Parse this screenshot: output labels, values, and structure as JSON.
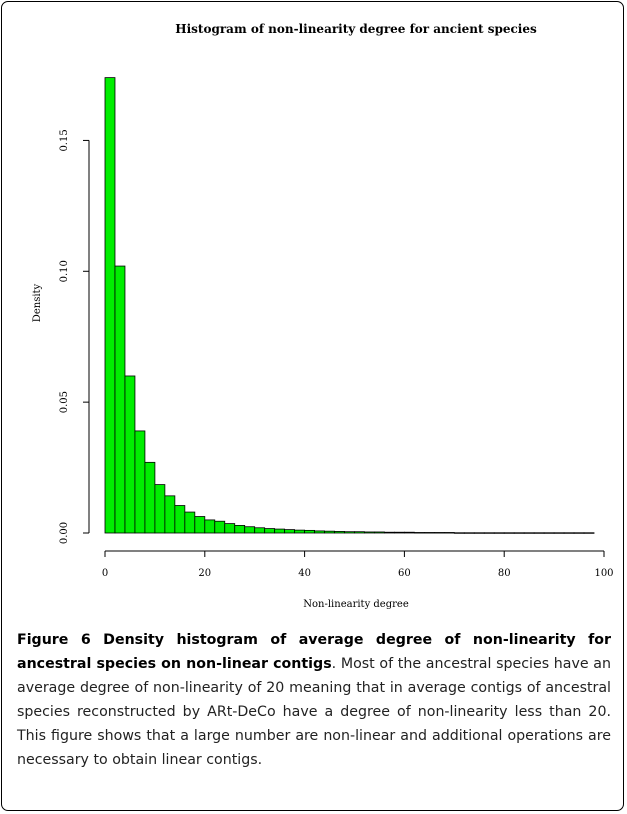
{
  "chart_data": {
    "type": "bar",
    "title": "Histogram of non-linearity degree for ancient species",
    "xlabel": "Non-linearity degree",
    "ylabel": "Density",
    "xlim": [
      0,
      100
    ],
    "ylim": [
      0,
      0.175
    ],
    "bin_width": 2,
    "bin_start": 0,
    "values": [
      0.174,
      0.102,
      0.06,
      0.039,
      0.027,
      0.0185,
      0.0142,
      0.0105,
      0.008,
      0.0063,
      0.005,
      0.0045,
      0.0036,
      0.0029,
      0.0024,
      0.002,
      0.0017,
      0.0015,
      0.0013,
      0.0011,
      0.001,
      0.0008,
      0.0007,
      0.0006,
      0.0005,
      0.0005,
      0.0004,
      0.0004,
      0.0003,
      0.0003,
      0.0003,
      0.0002,
      0.0002,
      0.0002,
      0.0002,
      0.0001,
      0.0001,
      0.0001,
      0.0001,
      0.0001,
      0.0001,
      0.0001,
      0.0001,
      0.0001,
      0.0001,
      0.0001,
      0.0001,
      0.0001,
      0.0001
    ],
    "x_ticks": [
      0,
      20,
      40,
      60,
      80,
      100
    ],
    "x_tick_labels": [
      "0",
      "20",
      "40",
      "60",
      "80",
      "100"
    ],
    "y_ticks": [
      0,
      0.05,
      0.1,
      0.15
    ],
    "y_tick_labels": [
      "0.00",
      "0.05",
      "0.10",
      "0.15"
    ],
    "bar_color": "#00ee00",
    "grid": false
  },
  "caption": {
    "label": "Figure 6 Density histogram of average degree of non-linearity for ancestral species on non-linear contigs",
    "text": ". Most of the ancestral species have an average degree of non-linearity of 20 meaning that in average contigs of ancestral species reconstructed by ARt-DeCo have a degree of non-linearity less than 20. This figure shows that a large number are non-linear and additional operations are necessary to obtain linear contigs."
  }
}
